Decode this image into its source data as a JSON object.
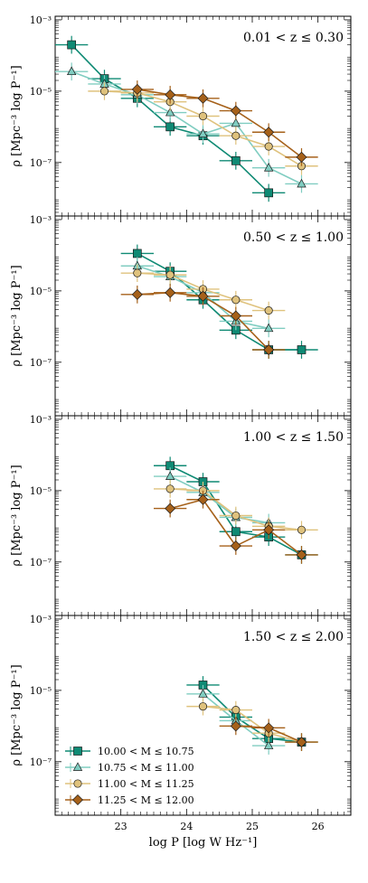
{
  "chart_data": {
    "type": "line",
    "xlabel": "log P [log W Hz⁻¹]",
    "ylabel": "ρ [Mpc⁻³ log P⁻¹]",
    "xlim": [
      22.0,
      26.5
    ],
    "ylim_log10": [
      -8.5,
      -2.9
    ],
    "x_ticks": [
      23,
      24,
      25,
      26
    ],
    "y_ticks": [
      {
        "log10": -3,
        "label": "10⁻³"
      },
      {
        "log10": -5,
        "label": "10⁻⁵"
      },
      {
        "log10": -7,
        "label": "10⁻⁷"
      }
    ],
    "legend": {
      "placement": "lower-left",
      "entries": [
        {
          "label": "10.00 < M ≤ 10.75",
          "color": "#0f8a74",
          "marker": "square"
        },
        {
          "label": "10.75 < M ≤ 11.00",
          "color": "#80cdc1",
          "marker": "triangle"
        },
        {
          "label": "11.00 < M ≤ 11.25",
          "color": "#dfc27d",
          "marker": "circle"
        },
        {
          "label": "11.25 < M ≤ 12.00",
          "color": "#a6611a",
          "marker": "diamond"
        }
      ]
    },
    "panels": [
      {
        "title": "0.01 < z ≤ 0.30",
        "series": [
          {
            "points": [
              [
                22.25,
                -3.7
              ],
              [
                22.75,
                -4.65
              ],
              [
                23.25,
                -5.2
              ],
              [
                23.75,
                -6.0
              ],
              [
                24.25,
                -6.25
              ],
              [
                24.75,
                -6.95
              ],
              [
                25.25,
                -7.85
              ]
            ]
          },
          {
            "points": [
              [
                22.25,
                -4.45
              ],
              [
                22.75,
                -4.8
              ],
              [
                23.25,
                -5.1
              ],
              [
                23.75,
                -5.6
              ],
              [
                24.25,
                -6.2
              ],
              [
                24.75,
                -5.9
              ],
              [
                25.25,
                -7.15
              ],
              [
                25.75,
                -7.6
              ]
            ]
          },
          {
            "points": [
              [
                22.75,
                -5.0
              ],
              [
                23.25,
                -5.05
              ],
              [
                23.75,
                -5.3
              ],
              [
                24.25,
                -5.7
              ],
              [
                24.75,
                -6.25
              ],
              [
                25.25,
                -6.55
              ],
              [
                25.75,
                -7.1
              ]
            ]
          },
          {
            "points": [
              [
                23.25,
                -4.95
              ],
              [
                23.75,
                -5.1
              ],
              [
                24.25,
                -5.2
              ],
              [
                24.75,
                -5.55
              ],
              [
                25.25,
                -6.15
              ],
              [
                25.75,
                -6.85
              ]
            ]
          }
        ]
      },
      {
        "title": "0.50 < z ≤ 1.00",
        "series": [
          {
            "points": [
              [
                23.25,
                -3.95
              ],
              [
                23.75,
                -4.45
              ],
              [
                24.25,
                -5.25
              ],
              [
                24.75,
                -6.1
              ],
              [
                25.25,
                -6.65
              ],
              [
                25.75,
                -6.65
              ]
            ]
          },
          {
            "points": [
              [
                23.25,
                -4.3
              ],
              [
                23.75,
                -4.6
              ],
              [
                24.25,
                -5.05
              ],
              [
                24.75,
                -5.85
              ],
              [
                25.25,
                -6.05
              ]
            ]
          },
          {
            "points": [
              [
                23.25,
                -4.5
              ],
              [
                23.75,
                -4.55
              ],
              [
                24.25,
                -4.95
              ],
              [
                24.75,
                -5.25
              ],
              [
                25.25,
                -5.55
              ]
            ]
          },
          {
            "points": [
              [
                23.25,
                -5.1
              ],
              [
                23.75,
                -5.05
              ],
              [
                24.25,
                -5.15
              ],
              [
                24.75,
                -5.7
              ],
              [
                25.25,
                -6.65
              ]
            ]
          }
        ]
      },
      {
        "title": "1.00 < z ≤ 1.50",
        "series": [
          {
            "points": [
              [
                23.75,
                -4.3
              ],
              [
                24.25,
                -4.75
              ],
              [
                24.75,
                -6.15
              ],
              [
                25.25,
                -6.3
              ],
              [
                25.75,
                -6.8
              ]
            ]
          },
          {
            "points": [
              [
                23.75,
                -4.6
              ],
              [
                24.25,
                -5.05
              ],
              [
                24.75,
                -5.75
              ],
              [
                25.25,
                -5.9
              ]
            ]
          },
          {
            "points": [
              [
                23.75,
                -4.95
              ],
              [
                24.25,
                -5.0
              ],
              [
                24.75,
                -5.7
              ],
              [
                25.25,
                -6.0
              ],
              [
                25.75,
                -6.1
              ]
            ]
          },
          {
            "points": [
              [
                23.75,
                -5.5
              ],
              [
                24.25,
                -5.25
              ],
              [
                24.75,
                -6.55
              ],
              [
                25.25,
                -6.1
              ],
              [
                25.75,
                -6.8
              ]
            ]
          }
        ]
      },
      {
        "title": "1.50 < z ≤ 2.00",
        "series": [
          {
            "points": [
              [
                24.25,
                -4.85
              ],
              [
                24.75,
                -5.75
              ],
              [
                25.25,
                -6.35
              ],
              [
                25.75,
                -6.45
              ]
            ]
          },
          {
            "points": [
              [
                24.25,
                -5.1
              ],
              [
                24.75,
                -5.85
              ],
              [
                25.25,
                -6.55
              ]
            ]
          },
          {
            "points": [
              [
                24.25,
                -5.45
              ],
              [
                24.75,
                -5.55
              ],
              [
                25.25,
                -6.2
              ],
              [
                25.75,
                -6.45
              ]
            ]
          },
          {
            "points": [
              [
                24.75,
                -6.0
              ],
              [
                25.25,
                -6.05
              ],
              [
                25.75,
                -6.45
              ]
            ]
          }
        ]
      }
    ]
  }
}
